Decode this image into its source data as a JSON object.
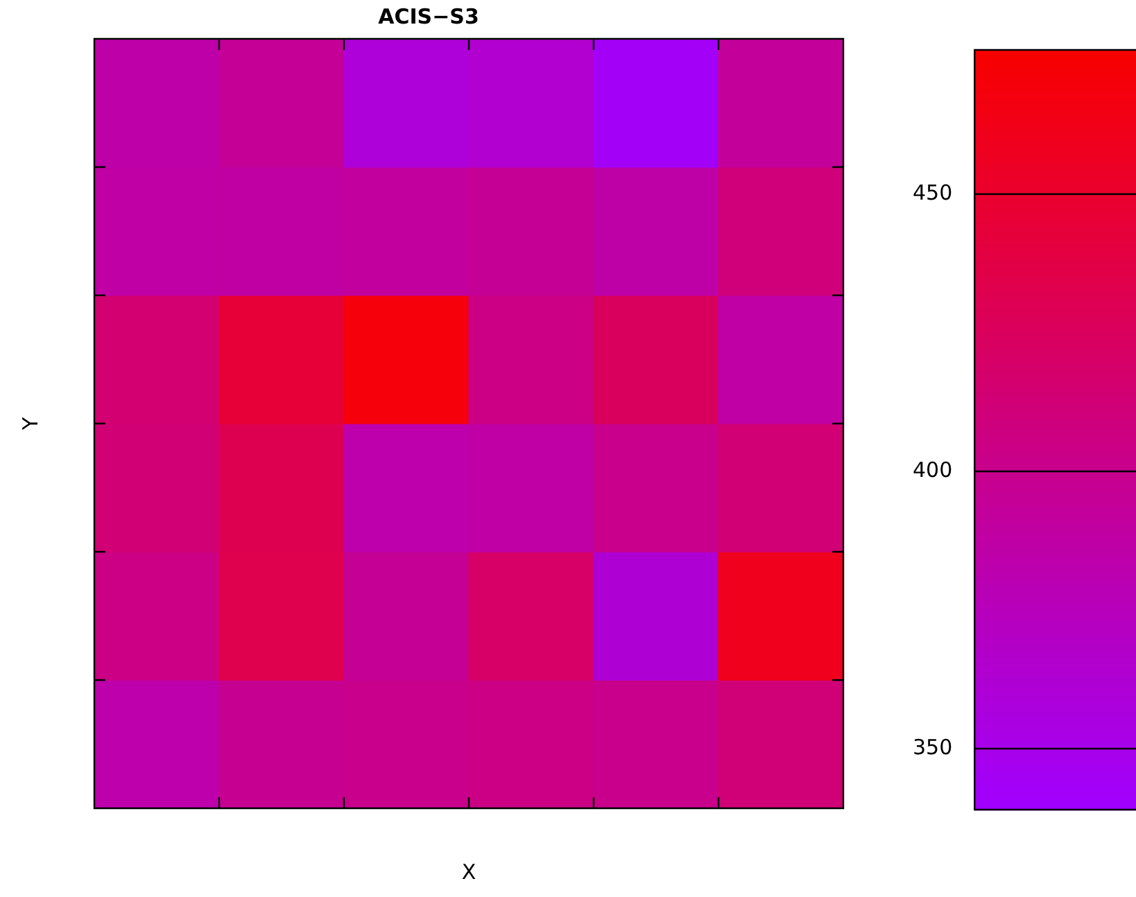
{
  "chart_data": {
    "type": "heatmap",
    "title": "ACIS−S3",
    "xlabel": "X",
    "ylabel": "Y",
    "categories": [
      null,
      null,
      null,
      null,
      null,
      null
    ],
    "y_categories": [
      null,
      null,
      null,
      null,
      null,
      null
    ],
    "cells": [
      [
        385,
        395,
        360,
        365,
        343,
        393
      ],
      [
        388,
        389,
        391,
        396,
        386,
        410
      ],
      [
        415,
        445,
        470,
        405,
        425,
        388
      ],
      [
        413,
        432,
        384,
        388,
        401,
        413
      ],
      [
        405,
        433,
        396,
        420,
        362,
        460
      ],
      [
        384,
        398,
        401,
        405,
        401,
        412
      ]
    ],
    "clim": [
      339,
      476
    ],
    "cticks": [
      350,
      400,
      450
    ],
    "tick_labels": false
  }
}
